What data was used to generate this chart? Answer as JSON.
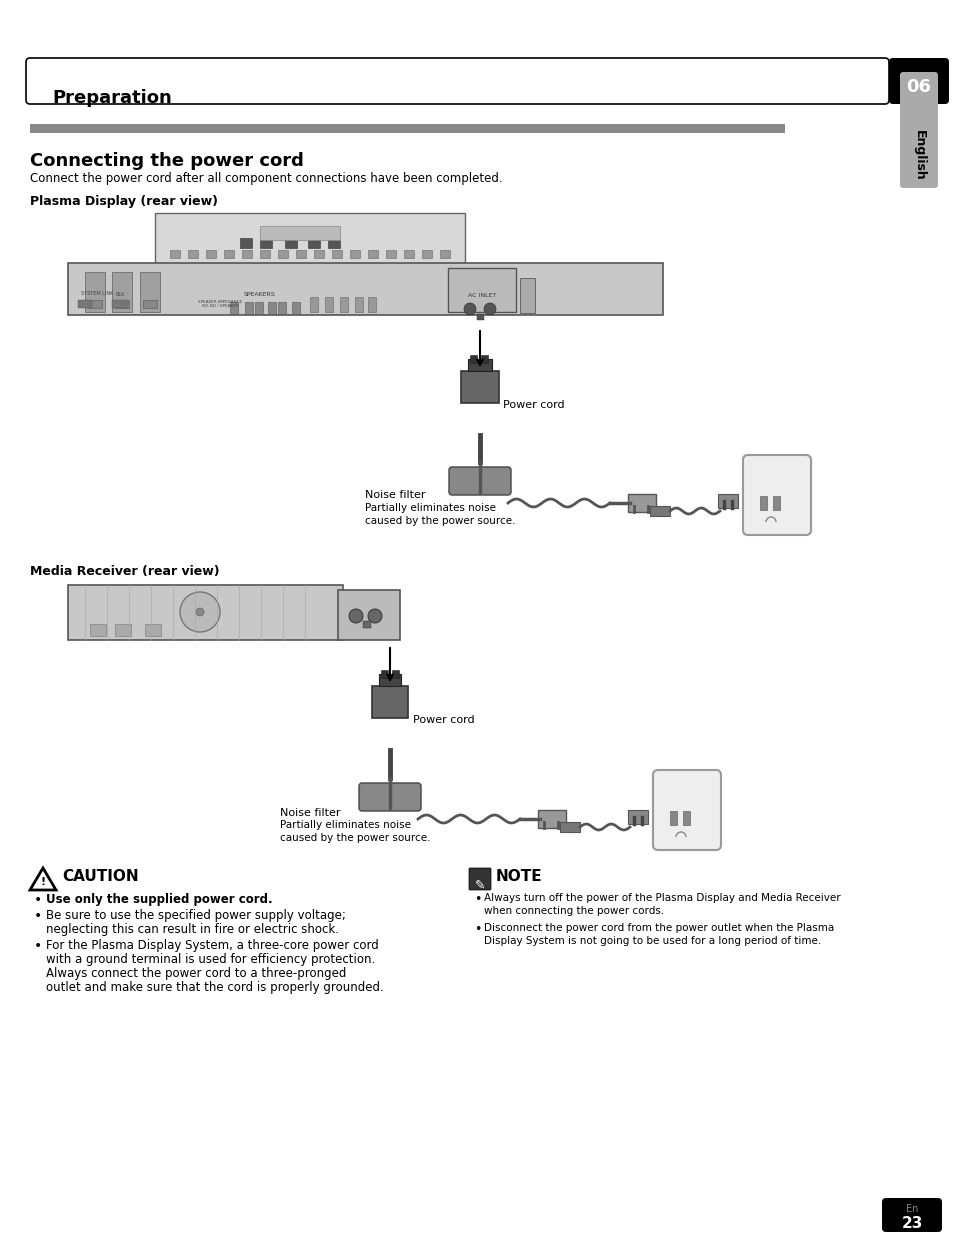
{
  "page_bg": "#ffffff",
  "header_text": "Preparation",
  "header_number": "06",
  "section_bar_color": "#808080",
  "section_title": "Connecting the power cord",
  "section_subtitle": "Connect the power cord after all component connections have been completed.",
  "subsection1": "Plasma Display (rear view)",
  "subsection2": "Media Receiver (rear view)",
  "power_cord_label": "Power cord",
  "noise_filter_label1": "Noise filter",
  "noise_filter_desc1": "Partially eliminates noise\ncaused by the power source.",
  "noise_filter_label2": "Noise filter",
  "noise_filter_desc2": "Partially eliminates noise\ncaused by the power source.",
  "power_cord_label2": "Power cord",
  "caution_title": "CAUTION",
  "caution_bullets": [
    "Use only the supplied power cord.",
    "Be sure to use the specified power supply voltage;\nneglecting this can result in fire or electric shock.",
    "For the Plasma Display System, a three-core power cord\nwith a ground terminal is used for efficiency protection.\nAlways connect the power cord to a three-pronged\noutlet and make sure that the cord is properly grounded."
  ],
  "note_title": "NOTE",
  "note_bullets": [
    "Always turn off the power of the Plasma Display and Media Receiver\nwhen connecting the power cords.",
    "Disconnect the power cord from the power outlet when the Plasma\nDisplay System is not going to be used for a long period of time."
  ],
  "page_number": "23",
  "page_sub": "En",
  "side_tab_text": "English"
}
